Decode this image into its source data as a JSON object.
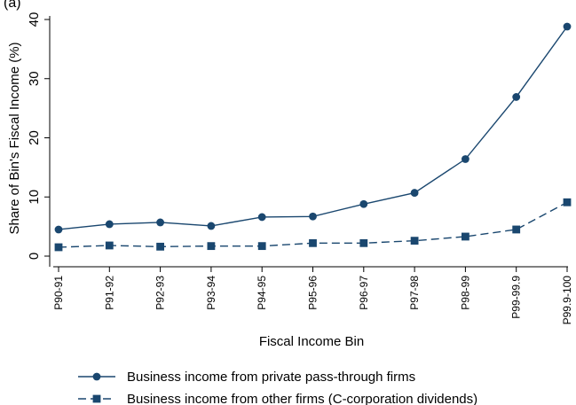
{
  "panel_label": "(a)",
  "chart_data": {
    "type": "line",
    "title": "",
    "xlabel": "Fiscal Income Bin",
    "ylabel": "Share of Bin's Fiscal Income (%)",
    "categories": [
      "P90-91",
      "P91-92",
      "P92-93",
      "P93-94",
      "P94-95",
      "P95-96",
      "P96-97",
      "P97-98",
      "P98-99",
      "P99-99.9",
      "P99.9-100"
    ],
    "ylim": [
      0,
      40
    ],
    "yticks": [
      0,
      10,
      20,
      30,
      40
    ],
    "grid": false,
    "legend_position": "bottom",
    "series": [
      {
        "name": "Business income from private pass-through firms",
        "marker": "circle",
        "line_style": "solid",
        "color": "#1a476f",
        "values": [
          4.5,
          5.4,
          5.7,
          5.1,
          6.6,
          6.7,
          8.8,
          10.7,
          16.4,
          26.9,
          38.8
        ]
      },
      {
        "name": "Business income from other firms (C-corporation dividends)",
        "marker": "square",
        "line_style": "dashed",
        "color": "#1a476f",
        "values": [
          1.5,
          1.8,
          1.6,
          1.7,
          1.7,
          2.2,
          2.2,
          2.6,
          3.3,
          4.5,
          9.1
        ]
      }
    ]
  }
}
